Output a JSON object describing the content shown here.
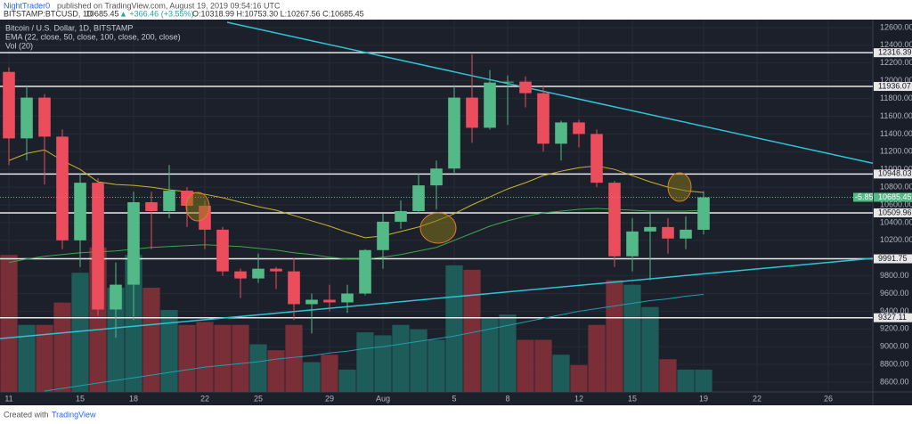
{
  "header": {
    "author": "NightTrader0",
    "published": "published on TradingView.com, August 19, 2019 09:54:16 UTC",
    "symbol": "BITSTAMP:BTCUSD, 1D",
    "last": "10685.45",
    "change": "▲ +366.46 (+3.55%)",
    "ohlc": "O:10318.99 H:10753.30 L:10267.56 C:10685.45"
  },
  "footer": {
    "created": "Created with",
    "brand": "TradingView"
  },
  "chart_data": {
    "type": "candlestick",
    "legend": [
      "Bitcoin / U.S. Dollar, 1D, BITSTAMP",
      "EMA (22, close, 50, close, 100, close, 200, close)",
      "Vol (20)"
    ],
    "xlim": [
      -0.5,
      48.5
    ],
    "xticks": [
      {
        "value": 0,
        "label": "11"
      },
      {
        "value": 4,
        "label": "15"
      },
      {
        "value": 7,
        "label": "18"
      },
      {
        "value": 11,
        "label": "22"
      },
      {
        "value": 14,
        "label": "25"
      },
      {
        "value": 18,
        "label": "29"
      },
      {
        "value": 21,
        "label": "Aug"
      },
      {
        "value": 25,
        "label": "5"
      },
      {
        "value": 28,
        "label": "8"
      },
      {
        "value": 32,
        "label": "12"
      },
      {
        "value": 35,
        "label": "15"
      },
      {
        "value": 39,
        "label": "19"
      },
      {
        "value": 42,
        "label": "22"
      },
      {
        "value": 46,
        "label": "26"
      }
    ],
    "ylim": [
      8490,
      12690
    ],
    "yticks": [
      {
        "value": 8600,
        "label": "8600.00"
      },
      {
        "value": 8800,
        "label": "8800.00"
      },
      {
        "value": 9000,
        "label": "9000.00"
      },
      {
        "value": 9200,
        "label": "9200.00"
      },
      {
        "value": 9400,
        "label": "9400.00"
      },
      {
        "value": 9600,
        "label": "9600.00"
      },
      {
        "value": 9800,
        "label": "9800.00"
      },
      {
        "value": 10000,
        "label": "10000.00"
      },
      {
        "value": 10200,
        "label": "10200.00"
      },
      {
        "value": 10400,
        "label": "10400.00"
      },
      {
        "value": 10600,
        "label": "10600.00"
      },
      {
        "value": 10800,
        "label": "10800.00"
      },
      {
        "value": 11000,
        "label": "11000.00"
      },
      {
        "value": 11200,
        "label": "11200.00"
      },
      {
        "value": 11400,
        "label": "11400.00"
      },
      {
        "value": 11600,
        "label": "11600.00"
      },
      {
        "value": 11800,
        "label": "11800.00"
      },
      {
        "value": 12000,
        "label": "12000.00"
      },
      {
        "value": 12200,
        "label": "12200.00"
      },
      {
        "value": 12400,
        "label": "12400.00"
      },
      {
        "value": 12600,
        "label": "12600.00"
      }
    ],
    "up_color": "#53b987",
    "down_color": "#eb4d5c",
    "volume_up_color": "#1e5c5a",
    "volume_down_color": "#7a2e38",
    "open": [
      12100,
      11350,
      11810,
      11370,
      10200,
      10850,
      9420,
      9700,
      10630,
      10530,
      10760,
      10590,
      10320,
      9850,
      9770,
      9880,
      9850,
      9480,
      9530,
      9500,
      9600,
      10090,
      10410,
      10530,
      10820,
      11010,
      11810,
      11470,
      11980,
      11990,
      11860,
      11290,
      11530,
      11400,
      10850,
      10020,
      10300,
      10350,
      10220,
      10318.99
    ],
    "high": [
      12150,
      11950,
      11850,
      11450,
      10950,
      10900,
      9950,
      10750,
      10750,
      11050,
      10800,
      10650,
      10350,
      9880,
      10050,
      9900,
      10000,
      9600,
      9700,
      9700,
      10100,
      10500,
      10650,
      10950,
      11100,
      11950,
      12300,
      12120,
      12060,
      12050,
      11950,
      11550,
      11560,
      11450,
      10870,
      10450,
      10500,
      10450,
      10470,
      10753.3
    ],
    "low": [
      11050,
      11100,
      10830,
      10100,
      9900,
      9350,
      9100,
      9300,
      10100,
      10450,
      10350,
      10100,
      9800,
      9550,
      9720,
      9650,
      9300,
      9150,
      9400,
      9380,
      9580,
      9880,
      10330,
      10500,
      10550,
      10960,
      11300,
      11450,
      11500,
      11700,
      11200,
      11100,
      11250,
      10800,
      9900,
      9850,
      9750,
      10050,
      10100,
      10267.56
    ],
    "close": [
      11350,
      11810,
      11370,
      10200,
      10850,
      9420,
      9700,
      10630,
      10530,
      10760,
      10590,
      10320,
      9850,
      9770,
      9880,
      9850,
      9480,
      9530,
      9500,
      9600,
      10090,
      10410,
      10530,
      10820,
      11010,
      11810,
      11470,
      11980,
      11990,
      11860,
      11290,
      11530,
      11400,
      10850,
      10020,
      10300,
      10350,
      10220,
      10320,
      10685.45
    ],
    "volume": [
      92,
      45,
      45,
      60,
      80,
      97,
      70,
      92,
      70,
      55,
      45,
      47,
      45,
      45,
      32,
      28,
      45,
      20,
      25,
      15,
      40,
      38,
      45,
      42,
      35,
      85,
      82,
      50,
      52,
      35,
      35,
      25,
      18,
      45,
      75,
      72,
      57,
      22,
      15,
      15
    ],
    "vlim": [
      0,
      250
    ],
    "series": [
      {
        "name": "EMA 22",
        "color": "#c8b42a",
        "values": [
          11100,
          11180,
          11220,
          11100,
          11000,
          10860,
          10830,
          10820,
          10800,
          10770,
          10750,
          10720,
          10680,
          10630,
          10580,
          10540,
          10480,
          10420,
          10360,
          10290,
          10230,
          10250,
          10300,
          10350,
          10420,
          10500,
          10600,
          10690,
          10780,
          10850,
          10930,
          10980,
          11020,
          11040,
          11000,
          10930,
          10860,
          10800,
          10760,
          10740
        ]
      },
      {
        "name": "EMA 50",
        "color": "#3fa64a",
        "values": [
          9950,
          9990,
          10020,
          10040,
          10060,
          10070,
          10080,
          10100,
          10120,
          10130,
          10140,
          10150,
          10140,
          10130,
          10110,
          10090,
          10060,
          10040,
          10010,
          9990,
          9990,
          10010,
          10040,
          10080,
          10120,
          10200,
          10280,
          10360,
          10420,
          10470,
          10510,
          10530,
          10550,
          10560,
          10550,
          10540,
          10530,
          10530,
          10530,
          10540
        ]
      },
      {
        "name": "EMA 200",
        "color": "#1e9fb0",
        "values": [
          null,
          null,
          8500,
          8530,
          8560,
          8590,
          8620,
          8650,
          8680,
          8710,
          8740,
          8770,
          8790,
          8810,
          8830,
          8860,
          8880,
          8900,
          8930,
          8950,
          8980,
          9000,
          9030,
          9060,
          9090,
          9120,
          9160,
          9200,
          9240,
          9280,
          9320,
          9360,
          9400,
          9430,
          9460,
          9490,
          9520,
          9540,
          9570,
          9590
        ]
      }
    ],
    "trendlines": [
      {
        "color": "#2ec4d6",
        "x": [
          12.25,
          48.5
        ],
        "values": [
          12660,
          11070
        ]
      },
      {
        "color": "#2ec4d6",
        "x": [
          -0.5,
          48.5
        ],
        "values": [
          9092,
          9997
        ]
      }
    ],
    "levels": [
      12316.39,
      11936.07,
      10948.03,
      10509.96,
      9991.75,
      9327.11
    ],
    "last_price": 10685.45,
    "last_note": "-5.85%"
  }
}
